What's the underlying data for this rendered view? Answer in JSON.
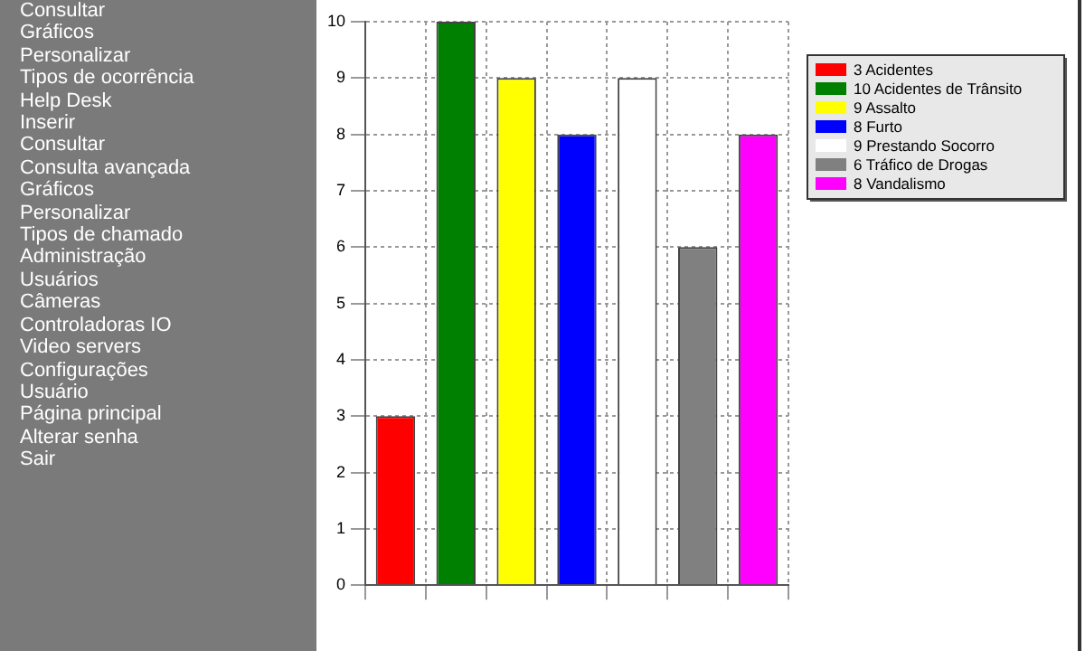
{
  "chart_data": {
    "type": "bar",
    "categories": [
      null,
      null,
      null,
      null,
      null,
      null,
      null
    ],
    "series": [
      {
        "name": "3 Acidentes",
        "color": "#ff0000",
        "values": [
          3,
          null,
          null,
          null,
          null,
          null,
          null
        ]
      },
      {
        "name": "10 Acidentes de Trânsito",
        "color": "#008000",
        "values": [
          null,
          10,
          null,
          null,
          null,
          null,
          null
        ]
      },
      {
        "name": "9 Assalto",
        "color": "#ffff00",
        "values": [
          null,
          null,
          9,
          null,
          null,
          null,
          null
        ]
      },
      {
        "name": "8 Furto",
        "color": "#0000ff",
        "values": [
          null,
          null,
          null,
          8,
          null,
          null,
          null
        ]
      },
      {
        "name": "9 Prestando Socorro",
        "color": "#ffffff",
        "values": [
          null,
          null,
          null,
          null,
          9,
          null,
          null
        ]
      },
      {
        "name": "6 Tráfico de Drogas",
        "color": "#808080",
        "values": [
          null,
          null,
          null,
          null,
          null,
          6,
          null
        ]
      },
      {
        "name": "8 Vandalismo",
        "color": "#ff00ff",
        "values": [
          null,
          null,
          null,
          null,
          null,
          null,
          8
        ]
      }
    ],
    "ylim": [
      0,
      10
    ],
    "yticks": [
      0,
      1,
      2,
      3,
      4,
      5,
      6,
      7,
      8,
      9,
      10
    ],
    "grid": true,
    "line_style": "dotted",
    "legend": "right",
    "annotations": [
      "Consultar",
      "Gráficos",
      "Personalizar",
      "Tipos de ocorrência",
      "Help Desk",
      "Inserir",
      "Consultar",
      "Consulta avançada",
      "Gráficos",
      "Personalizar",
      "Tipos de chamado",
      "Administração",
      "Usuários",
      "Câmeras",
      "Controladoras IO",
      "Video servers",
      "Configurações",
      "Usuário",
      "Página principal",
      "Alterar senha",
      "Sair"
    ]
  }
}
